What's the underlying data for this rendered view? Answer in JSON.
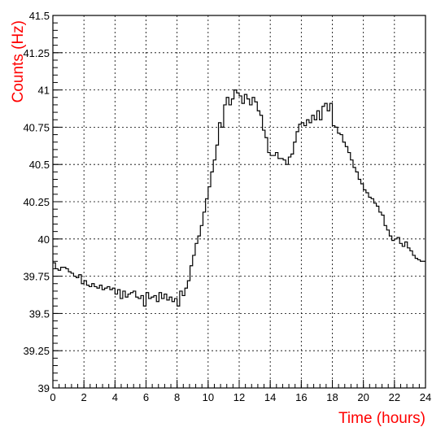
{
  "chart_data": {
    "type": "line",
    "style": "histogram-step",
    "xlabel": "Time (hours)",
    "ylabel": "Counts (Hz)",
    "xlim": [
      0,
      24
    ],
    "ylim": [
      39,
      41.5
    ],
    "grid": true,
    "label_color": "#ff0000",
    "line_color": "#000000",
    "x_ticks": [
      0,
      2,
      4,
      6,
      8,
      10,
      12,
      14,
      16,
      18,
      20,
      22,
      24
    ],
    "x_tick_labels": [
      "0",
      "2",
      "4",
      "6",
      "8",
      "10",
      "12",
      "14",
      "16",
      "18",
      "20",
      "22",
      "24"
    ],
    "y_ticks": [
      39,
      39.25,
      39.5,
      39.75,
      40,
      40.25,
      40.5,
      40.75,
      41,
      41.25,
      41.5
    ],
    "y_tick_labels": [
      "39",
      "39.25",
      "39.5",
      "39.75",
      "40",
      "40.25",
      "40.5",
      "40.75",
      "41",
      "41.25",
      "41.5"
    ],
    "bin_width": 0.1667,
    "series": [
      {
        "values": [
          39.84,
          39.8,
          39.79,
          39.81,
          39.81,
          39.8,
          39.78,
          39.77,
          39.75,
          39.74,
          39.76,
          39.7,
          39.72,
          39.69,
          39.68,
          39.7,
          39.68,
          39.67,
          39.69,
          39.66,
          39.67,
          39.68,
          39.66,
          39.67,
          39.63,
          39.66,
          39.6,
          39.65,
          39.61,
          39.63,
          39.64,
          39.65,
          39.61,
          39.6,
          39.62,
          39.55,
          39.64,
          39.6,
          39.61,
          39.62,
          39.58,
          39.64,
          39.6,
          39.63,
          39.59,
          39.61,
          39.58,
          39.6,
          39.55,
          39.65,
          39.62,
          39.67,
          39.72,
          39.82,
          39.89,
          39.97,
          40.02,
          40.09,
          40.18,
          40.27,
          40.35,
          40.45,
          40.53,
          40.63,
          40.78,
          40.75,
          40.9,
          40.95,
          40.9,
          40.94,
          41,
          40.98,
          40.96,
          40.91,
          40.97,
          40.94,
          40.9,
          40.95,
          40.92,
          40.86,
          40.83,
          40.73,
          40.68,
          40.58,
          40.56,
          40.56,
          40.58,
          40.54,
          40.54,
          40.53,
          40.5,
          40.55,
          40.57,
          40.65,
          40.72,
          40.77,
          40.78,
          40.76,
          40.8,
          40.78,
          40.83,
          40.8,
          40.86,
          40.8,
          40.89,
          40.91,
          40.86,
          40.91,
          40.76,
          40.75,
          40.71,
          40.7,
          40.65,
          40.62,
          40.58,
          40.53,
          40.48,
          40.45,
          40.4,
          40.37,
          40.33,
          40.31,
          40.28,
          40.27,
          40.24,
          40.22,
          40.18,
          40.16,
          40.09,
          40.06,
          40.02,
          39.99,
          40.0,
          40.01,
          39.97,
          39.95,
          39.98,
          39.94,
          39.92,
          39.89,
          39.87,
          39.86,
          39.85,
          39.85
        ]
      }
    ]
  }
}
